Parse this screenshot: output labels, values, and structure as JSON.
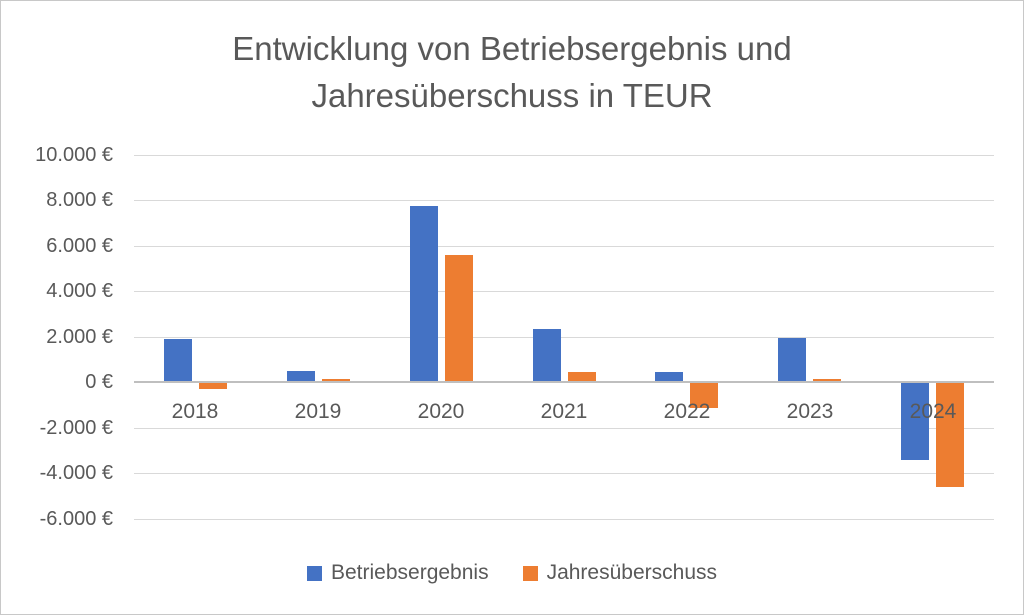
{
  "chart_data": {
    "type": "bar",
    "title": "Entwicklung von Betriebsergebnis und Jahresüberschuss in TEUR",
    "categories": [
      "2018",
      "2019",
      "2020",
      "2021",
      "2022",
      "2023",
      "2024"
    ],
    "series": [
      {
        "name": "Betriebsergebnis",
        "color": "#4472C4",
        "values": [
          1900,
          500,
          7750,
          2350,
          450,
          1950,
          -3450
        ]
      },
      {
        "name": "Jahresüberschuss",
        "color": "#ED7D31",
        "values": [
          -300,
          150,
          5600,
          450,
          -1150,
          150,
          -4600
        ]
      }
    ],
    "xlabel": "",
    "ylabel": "",
    "ylim": [
      -6000,
      10000
    ],
    "ytick_step": 2000,
    "ytick_labels": [
      "10.000 €",
      "8.000 €",
      "6.000 €",
      "4.000 €",
      "2.000 €",
      "0 €",
      "-2.000 €",
      "-4.000 €",
      "-6.000 €"
    ],
    "value_suffix": " €",
    "grid": true,
    "legend_position": "bottom",
    "colors": {
      "text": "#595959",
      "gridline": "#D9D9D9",
      "axis": "#BFBFBF",
      "border": "#C8C8C8",
      "background": "#FFFFFF"
    }
  }
}
